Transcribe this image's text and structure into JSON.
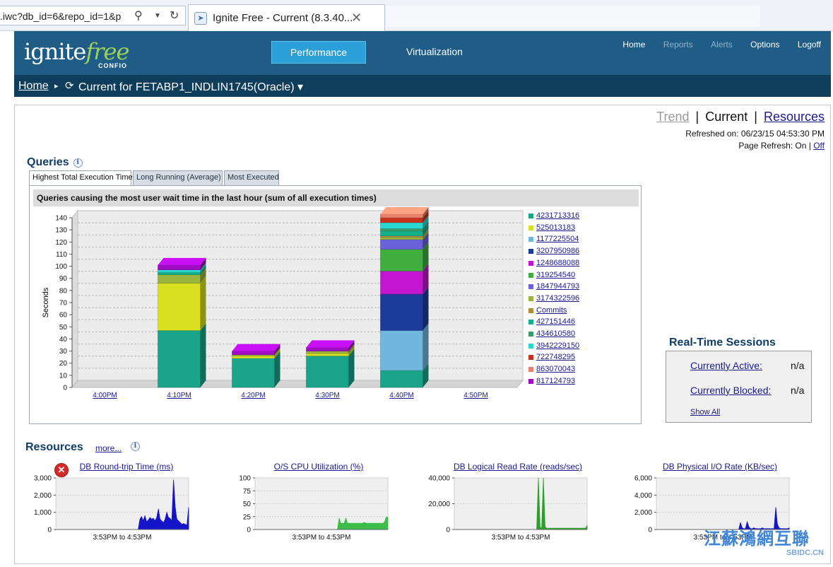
{
  "browser": {
    "url": ".iwc?db_id=6&repo_id=1&p",
    "tab_title": "Ignite Free - Current (8.3.40...",
    "favicon": "ignite-favicon"
  },
  "header": {
    "logo_main": "ignite",
    "logo_accent": "free",
    "logo_sub": "CONFIO",
    "tabs": [
      "Performance",
      "Virtualization"
    ],
    "nav": [
      "Home",
      "Reports",
      "Alerts",
      "Options",
      "Logoff"
    ]
  },
  "breadcrumb": {
    "home": "Home",
    "current": "Current for FETABP1_INDLIN1745(Oracle) ▾"
  },
  "view_switch": {
    "trend": "Trend",
    "current": "Current",
    "resources": "Resources"
  },
  "refresh": {
    "refreshed_label": "Refreshed on: 06/23/15 04:53:30 PM",
    "page_refresh_label": "Page Refresh: On | ",
    "off_link": "Off"
  },
  "queries": {
    "title": "Queries",
    "tabs": [
      "Highest Total Execution Time",
      "Long Running (Average)",
      "Most Executed"
    ],
    "panel_title": "Queries causing the most user wait time in the last hour (sum of all execution times)"
  },
  "chart_data": {
    "type": "bar",
    "stacked": true,
    "ylabel": "Seconds",
    "ylim": [
      0,
      140
    ],
    "yticks": [
      0,
      10,
      20,
      30,
      40,
      50,
      60,
      70,
      80,
      90,
      100,
      110,
      120,
      130,
      140
    ],
    "categories": [
      "4:00PM",
      "4:10PM",
      "4:20PM",
      "4:30PM",
      "4:40PM",
      "4:50PM"
    ],
    "series": [
      {
        "name": "4231713316",
        "color": "#1aa58a",
        "values": [
          0,
          47,
          24,
          26,
          14,
          0
        ]
      },
      {
        "name": "525013183",
        "color": "#d8e020",
        "values": [
          0,
          39,
          2,
          2,
          0,
          0
        ]
      },
      {
        "name": "1177225504",
        "color": "#6fb7dc",
        "values": [
          0,
          0,
          0,
          0,
          33,
          0
        ]
      },
      {
        "name": "3207950986",
        "color": "#1c3c9c",
        "values": [
          0,
          0,
          0,
          0,
          30,
          0
        ]
      },
      {
        "name": "1248688088",
        "color": "#c216d0",
        "values": [
          0,
          0,
          0,
          0,
          19,
          0
        ]
      },
      {
        "name": "319254540",
        "color": "#3fae3f",
        "values": [
          0,
          0,
          0,
          0,
          18,
          0
        ]
      },
      {
        "name": "1847944793",
        "color": "#6a62d8",
        "values": [
          0,
          0,
          0,
          0,
          8,
          0
        ]
      },
      {
        "name": "3174322596",
        "color": "#9ab43c",
        "values": [
          0,
          7,
          1,
          2,
          2,
          0
        ]
      },
      {
        "name": "Commits",
        "color": "#b48a3c",
        "values": [
          0,
          0,
          0,
          0,
          1,
          0
        ]
      },
      {
        "name": "427151446",
        "color": "#14b08c",
        "values": [
          0,
          2,
          0,
          0,
          4,
          0
        ]
      },
      {
        "name": "434610580",
        "color": "#3a9c6a",
        "values": [
          0,
          0,
          0,
          0,
          2,
          0
        ]
      },
      {
        "name": "3942229150",
        "color": "#28d8d0",
        "values": [
          0,
          2,
          0,
          0,
          5,
          0
        ]
      },
      {
        "name": "722748295",
        "color": "#c8321c",
        "values": [
          0,
          0,
          0,
          0,
          4,
          0
        ]
      },
      {
        "name": "863070043",
        "color": "#e8826a",
        "values": [
          0,
          0,
          0,
          0,
          3,
          0
        ]
      },
      {
        "name": "817124793",
        "color": "#a00cc4",
        "values": [
          0,
          4,
          3,
          3,
          0,
          0
        ]
      }
    ]
  },
  "realtime": {
    "title": "Real-Time Sessions",
    "active_label": "Currently Active:",
    "active_value": "n/a",
    "blocked_label": "Currently Blocked:",
    "blocked_value": "n/a",
    "show_all": "Show All"
  },
  "resources": {
    "title": "Resources",
    "more": "more...",
    "charts": [
      {
        "title": "DB Round-trip Time (ms)",
        "color": "#1414c8",
        "ymax": 3000,
        "yticks": [
          "3,000",
          "2,000",
          "1,000",
          "0"
        ],
        "range": "3:53PM to 4:53PM",
        "values": [
          0,
          0,
          0,
          0,
          0,
          0,
          0,
          0,
          0,
          0,
          0,
          0,
          0,
          0,
          0,
          0,
          0,
          0,
          0,
          0,
          0,
          0,
          0,
          0,
          0,
          0,
          0,
          0,
          0,
          0,
          0,
          0,
          0,
          0,
          0,
          0,
          0,
          0,
          0,
          0,
          0,
          0,
          0,
          0,
          0,
          0,
          0,
          0,
          0,
          0,
          600,
          750,
          500,
          800,
          450,
          550,
          700,
          600,
          650,
          500,
          700,
          1200,
          600,
          500,
          400,
          600,
          1000,
          700,
          650,
          500,
          2900,
          1300,
          600,
          500,
          400,
          300,
          350,
          300,
          250,
          1300
        ]
      },
      {
        "title": "O/S CPU Utilization (%)",
        "color": "#3cbc4a",
        "ymax": 100,
        "yticks": [
          "100",
          "75",
          "50",
          "25",
          "0"
        ],
        "range": "3:53PM to 4:53PM",
        "values": [
          0,
          0,
          0,
          0,
          0,
          0,
          0,
          0,
          0,
          0,
          0,
          0,
          0,
          0,
          0,
          0,
          0,
          0,
          0,
          0,
          0,
          0,
          0,
          0,
          0,
          0,
          0,
          0,
          0,
          0,
          0,
          0,
          0,
          0,
          0,
          0,
          0,
          0,
          0,
          0,
          0,
          0,
          0,
          0,
          0,
          0,
          0,
          0,
          0,
          0,
          22,
          12,
          12,
          12,
          22,
          12,
          12,
          12,
          12,
          12,
          12,
          12,
          12,
          12,
          12,
          14,
          12,
          12,
          12,
          12,
          12,
          12,
          12,
          12,
          12,
          12,
          12,
          14,
          24,
          24
        ]
      },
      {
        "title": "DB Logical Read Rate (reads/sec)",
        "color": "#2ca02c",
        "ymax": 40000,
        "yticks": [
          "40,000",
          "20,000",
          "0"
        ],
        "range": "3:53PM to 4:53PM",
        "values": [
          0,
          0,
          0,
          0,
          0,
          0,
          0,
          0,
          0,
          0,
          0,
          0,
          0,
          0,
          0,
          0,
          0,
          0,
          0,
          0,
          0,
          0,
          0,
          0,
          0,
          0,
          0,
          0,
          0,
          0,
          0,
          0,
          0,
          0,
          0,
          0,
          0,
          0,
          0,
          0,
          0,
          0,
          0,
          0,
          0,
          0,
          0,
          0,
          0,
          0,
          41000,
          2000,
          1000,
          44000,
          2000,
          1000,
          1000,
          1000,
          1000,
          1000,
          1000,
          1000,
          1000,
          1000,
          1000,
          1000,
          1000,
          1000,
          1000,
          1000,
          1000,
          1000,
          1000,
          1000,
          1000,
          1000,
          1000,
          1000,
          1000,
          3000
        ]
      },
      {
        "title": "DB Physical I/O Rate (KB/sec)",
        "color": "#1414c8",
        "ymax": 6000,
        "yticks": [
          "6,000",
          "4,000",
          "2,000",
          "0"
        ],
        "range": "3:53PM to 4:53PM",
        "values": [
          0,
          0,
          0,
          0,
          0,
          0,
          0,
          0,
          0,
          0,
          0,
          0,
          0,
          0,
          0,
          0,
          0,
          0,
          0,
          0,
          0,
          0,
          0,
          0,
          0,
          0,
          0,
          0,
          0,
          0,
          0,
          0,
          0,
          0,
          0,
          0,
          0,
          0,
          0,
          0,
          0,
          0,
          0,
          0,
          0,
          0,
          0,
          0,
          0,
          0,
          800,
          200,
          100,
          100,
          900,
          300,
          100,
          100,
          200,
          100,
          100,
          100,
          100,
          200,
          100,
          100,
          100,
          100,
          100,
          100,
          100,
          2600,
          600,
          200,
          100,
          100,
          100,
          100,
          100,
          200
        ]
      }
    ]
  },
  "watermark": {
    "line1": "江蘇鴻網互聯",
    "line2": "SBIDC.CN"
  }
}
